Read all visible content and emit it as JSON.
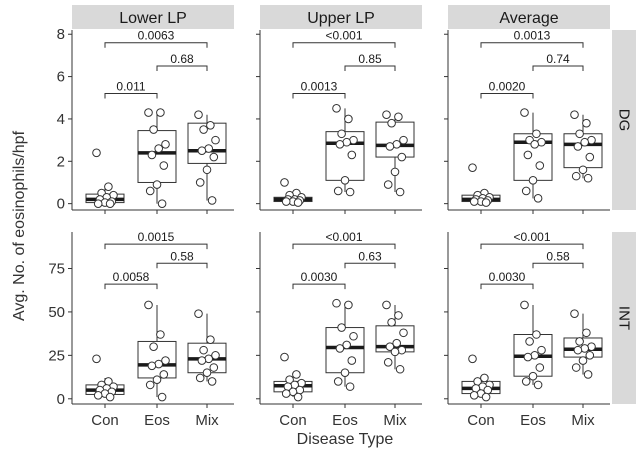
{
  "figure": {
    "xlabel": "Disease Type",
    "ylabel": "Avg. No. of eosinophils/hpf",
    "columns": [
      "Lower LP",
      "Upper LP",
      "Average"
    ],
    "rows": [
      "DG",
      "INT"
    ],
    "colors": {
      "strip_bg": "#d9d9d9",
      "box_stroke": "#333333",
      "median": "#1a1a1a",
      "point_fill": "#ffffff",
      "point_stroke": "#333333",
      "axis": "#333333"
    }
  },
  "chart_data": [
    {
      "type": "box",
      "column": "Lower LP",
      "row": "DG",
      "categories": [
        "Con",
        "Eos",
        "Mix"
      ],
      "ylim": [
        -0.3,
        8.2
      ],
      "yticks": [
        0,
        2,
        4,
        6,
        8
      ],
      "boxes": [
        {
          "category": "Con",
          "q1": 0.05,
          "median": 0.2,
          "q3": 0.45,
          "whisker_low": 0,
          "whisker_high": 0.8
        },
        {
          "category": "Eos",
          "q1": 1.0,
          "median": 2.4,
          "q3": 3.45,
          "whisker_low": 0,
          "whisker_high": 4.3
        },
        {
          "category": "Mix",
          "q1": 1.9,
          "median": 2.5,
          "q3": 3.8,
          "whisker_low": 0.15,
          "whisker_high": 4.2
        }
      ],
      "points": [
        {
          "category": "Con",
          "values": [
            2.4,
            0.8,
            0.5,
            0.4,
            0.3,
            0.2,
            0.1,
            0.05,
            0.0,
            0.0
          ]
        },
        {
          "category": "Eos",
          "values": [
            4.3,
            4.3,
            3.5,
            2.8,
            2.6,
            2.3,
            1.8,
            0.9,
            0.6,
            0.0
          ]
        },
        {
          "category": "Mix",
          "values": [
            4.2,
            3.7,
            3.5,
            3.0,
            2.6,
            2.5,
            2.2,
            1.6,
            1.0,
            0.15
          ]
        }
      ],
      "comparisons": [
        {
          "from": "Con",
          "to": "Eos",
          "y": 5.2,
          "label": "0.011"
        },
        {
          "from": "Eos",
          "to": "Mix",
          "y": 6.5,
          "label": "0.68"
        },
        {
          "from": "Con",
          "to": "Mix",
          "y": 7.6,
          "label": "0.0063"
        }
      ]
    },
    {
      "type": "box",
      "column": "Upper LP",
      "row": "DG",
      "categories": [
        "Con",
        "Eos",
        "Mix"
      ],
      "ylim": [
        -0.3,
        8.2
      ],
      "yticks": [
        0,
        2,
        4,
        6,
        8
      ],
      "boxes": [
        {
          "category": "Con",
          "q1": 0.1,
          "median": 0.2,
          "q3": 0.3,
          "whisker_low": 0.05,
          "whisker_high": 0.5
        },
        {
          "category": "Eos",
          "q1": 1.1,
          "median": 2.85,
          "q3": 3.4,
          "whisker_low": 0.55,
          "whisker_high": 4.5
        },
        {
          "category": "Mix",
          "q1": 2.2,
          "median": 2.75,
          "q3": 3.85,
          "whisker_low": 0.55,
          "whisker_high": 4.2
        }
      ],
      "points": [
        {
          "category": "Con",
          "values": [
            1.0,
            0.5,
            0.4,
            0.3,
            0.2,
            0.2,
            0.15,
            0.1,
            0.1,
            0.05
          ]
        },
        {
          "category": "Eos",
          "values": [
            4.5,
            4.0,
            3.3,
            3.0,
            2.9,
            2.8,
            2.3,
            1.1,
            0.6,
            0.55
          ]
        },
        {
          "category": "Mix",
          "values": [
            4.2,
            4.1,
            3.8,
            3.0,
            2.8,
            2.7,
            2.2,
            1.5,
            0.9,
            0.55
          ]
        }
      ],
      "comparisons": [
        {
          "from": "Con",
          "to": "Eos",
          "y": 5.2,
          "label": "0.0013"
        },
        {
          "from": "Eos",
          "to": "Mix",
          "y": 6.5,
          "label": "0.85"
        },
        {
          "from": "Con",
          "to": "Mix",
          "y": 7.6,
          "label": "<0.001"
        }
      ]
    },
    {
      "type": "box",
      "column": "Average",
      "row": "DG",
      "categories": [
        "Con",
        "Eos",
        "Mix"
      ],
      "ylim": [
        -0.3,
        8.2
      ],
      "yticks": [
        0,
        2,
        4,
        6,
        8
      ],
      "boxes": [
        {
          "category": "Con",
          "q1": 0.1,
          "median": 0.2,
          "q3": 0.4,
          "whisker_low": 0.05,
          "whisker_high": 0.5
        },
        {
          "category": "Eos",
          "q1": 1.1,
          "median": 2.9,
          "q3": 3.3,
          "whisker_low": 0.25,
          "whisker_high": 4.3
        },
        {
          "category": "Mix",
          "q1": 1.7,
          "median": 2.8,
          "q3": 3.3,
          "whisker_low": 1.2,
          "whisker_high": 4.2
        }
      ],
      "points": [
        {
          "category": "Con",
          "values": [
            1.7,
            0.5,
            0.4,
            0.3,
            0.25,
            0.2,
            0.15,
            0.1,
            0.1,
            0.05
          ]
        },
        {
          "category": "Eos",
          "values": [
            4.3,
            3.3,
            3.0,
            2.9,
            2.8,
            2.3,
            1.8,
            1.1,
            0.6,
            0.25
          ]
        },
        {
          "category": "Mix",
          "values": [
            4.2,
            3.8,
            3.3,
            3.0,
            2.9,
            2.7,
            2.2,
            1.6,
            1.3,
            1.2
          ]
        }
      ],
      "comparisons": [
        {
          "from": "Con",
          "to": "Eos",
          "y": 5.2,
          "label": "0.0020"
        },
        {
          "from": "Eos",
          "to": "Mix",
          "y": 6.5,
          "label": "0.74"
        },
        {
          "from": "Con",
          "to": "Mix",
          "y": 7.6,
          "label": "0.0013"
        }
      ]
    },
    {
      "type": "box",
      "column": "Lower LP",
      "row": "INT",
      "categories": [
        "Con",
        "Eos",
        "Mix"
      ],
      "ylim": [
        -3,
        96
      ],
      "yticks": [
        0,
        25,
        50,
        75
      ],
      "boxes": [
        {
          "category": "Con",
          "q1": 2.5,
          "median": 5,
          "q3": 8,
          "whisker_low": 1,
          "whisker_high": 12
        },
        {
          "category": "Eos",
          "q1": 12,
          "median": 19.5,
          "q3": 33,
          "whisker_low": 1,
          "whisker_high": 54
        },
        {
          "category": "Mix",
          "q1": 15,
          "median": 23,
          "q3": 32,
          "whisker_low": 10,
          "whisker_high": 49
        }
      ],
      "points": [
        {
          "category": "Con",
          "values": [
            23,
            10,
            8,
            7,
            6,
            5,
            4,
            3,
            2,
            1
          ]
        },
        {
          "category": "Eos",
          "values": [
            54,
            37,
            30,
            22,
            20,
            19,
            14,
            11,
            8,
            1
          ]
        },
        {
          "category": "Mix",
          "values": [
            49,
            34,
            28,
            25,
            23,
            22,
            18,
            15,
            12,
            10
          ]
        }
      ],
      "comparisons": [
        {
          "from": "Con",
          "to": "Eos",
          "y": 66,
          "label": "0.0058"
        },
        {
          "from": "Eos",
          "to": "Mix",
          "y": 78,
          "label": "0.58"
        },
        {
          "from": "Con",
          "to": "Mix",
          "y": 89,
          "label": "0.0015"
        }
      ]
    },
    {
      "type": "box",
      "column": "Upper LP",
      "row": "INT",
      "categories": [
        "Con",
        "Eos",
        "Mix"
      ],
      "ylim": [
        -3,
        96
      ],
      "yticks": [
        0,
        25,
        50,
        75
      ],
      "boxes": [
        {
          "category": "Con",
          "q1": 4,
          "median": 7.5,
          "q3": 10,
          "whisker_low": 1,
          "whisker_high": 14
        },
        {
          "category": "Eos",
          "q1": 15,
          "median": 29.5,
          "q3": 41,
          "whisker_low": 7,
          "whisker_high": 55
        },
        {
          "category": "Mix",
          "q1": 27,
          "median": 30,
          "q3": 42,
          "whisker_low": 17,
          "whisker_high": 54
        }
      ],
      "points": [
        {
          "category": "Con",
          "values": [
            24,
            14,
            11,
            9,
            8,
            7,
            5,
            4,
            3,
            1
          ]
        },
        {
          "category": "Eos",
          "values": [
            55,
            54,
            41,
            36,
            31,
            29,
            22,
            15,
            10,
            7
          ]
        },
        {
          "category": "Mix",
          "values": [
            54,
            48,
            44,
            38,
            32,
            30,
            28,
            27,
            21,
            17
          ]
        }
      ],
      "comparisons": [
        {
          "from": "Con",
          "to": "Eos",
          "y": 66,
          "label": "0.0030"
        },
        {
          "from": "Eos",
          "to": "Mix",
          "y": 78,
          "label": "0.63"
        },
        {
          "from": "Con",
          "to": "Mix",
          "y": 89,
          "label": "<0.001"
        }
      ]
    },
    {
      "type": "box",
      "column": "Average",
      "row": "INT",
      "categories": [
        "Con",
        "Eos",
        "Mix"
      ],
      "ylim": [
        -3,
        96
      ],
      "yticks": [
        0,
        25,
        50,
        75
      ],
      "boxes": [
        {
          "category": "Con",
          "q1": 3,
          "median": 6,
          "q3": 10,
          "whisker_low": 1,
          "whisker_high": 13
        },
        {
          "category": "Eos",
          "q1": 13,
          "median": 24.5,
          "q3": 37,
          "whisker_low": 8,
          "whisker_high": 54
        },
        {
          "category": "Mix",
          "q1": 24,
          "median": 28.5,
          "q3": 35,
          "whisker_low": 14,
          "whisker_high": 49
        }
      ],
      "points": [
        {
          "category": "Con",
          "values": [
            23,
            12,
            10,
            8,
            7,
            6,
            5,
            3,
            2,
            1
          ]
        },
        {
          "category": "Eos",
          "values": [
            54,
            37,
            33,
            28,
            25,
            24,
            18,
            13,
            10,
            8
          ]
        },
        {
          "category": "Mix",
          "values": [
            49,
            38,
            33,
            30,
            29,
            28,
            25,
            22,
            18,
            14
          ]
        }
      ],
      "comparisons": [
        {
          "from": "Con",
          "to": "Eos",
          "y": 66,
          "label": "0.0030"
        },
        {
          "from": "Eos",
          "to": "Mix",
          "y": 78,
          "label": "0.58"
        },
        {
          "from": "Con",
          "to": "Mix",
          "y": 89,
          "label": "<0.001"
        }
      ]
    }
  ]
}
